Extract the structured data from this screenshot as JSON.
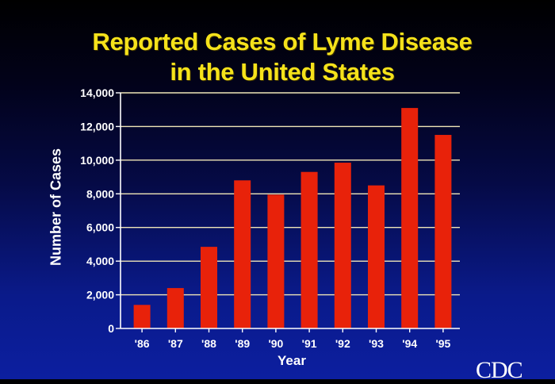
{
  "chart_data": {
    "type": "bar",
    "title": [
      "Reported Cases of Lyme Disease",
      "in the United States"
    ],
    "xlabel": "Year",
    "ylabel": "Number of Cases",
    "categories": [
      "'86",
      "'87",
      "'88",
      "'89",
      "'90",
      "'91",
      "'92",
      "'93",
      "'94",
      "'95"
    ],
    "values": [
      1400,
      2400,
      4850,
      8800,
      7950,
      9300,
      9850,
      8500,
      13100,
      11500
    ],
    "ylim": [
      0,
      14000
    ],
    "yticks": [
      0,
      2000,
      4000,
      6000,
      8000,
      10000,
      12000,
      14000
    ],
    "ytick_labels": [
      "0",
      "2,000",
      "4,000",
      "6,000",
      "8,000",
      "10,000",
      "12,000",
      "14,000"
    ],
    "grid": true,
    "colors": {
      "bar": "#e8220a",
      "grid": "#f0e6b8",
      "axis": "#ffffff",
      "title": "#f5e21b",
      "text": "#ffffff"
    }
  },
  "logo": "CDC"
}
